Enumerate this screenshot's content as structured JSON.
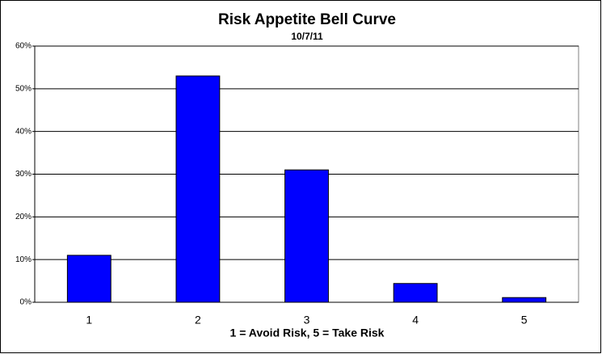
{
  "chart_data": {
    "type": "bar",
    "title": "Risk Appetite Bell Curve",
    "subtitle": "10/7/11",
    "x_label": "1 = Avoid Risk, 5 = Take Risk",
    "categories": [
      "1",
      "2",
      "3",
      "4",
      "5"
    ],
    "values": [
      11,
      53,
      31,
      4.4,
      1.1
    ],
    "color": "#0000ff",
    "ylim": [
      0,
      60
    ],
    "yticks": [
      {
        "value": 0,
        "label": "0%"
      },
      {
        "value": 10,
        "label": "10%"
      },
      {
        "value": 20,
        "label": "20%"
      },
      {
        "value": 30,
        "label": "30%"
      },
      {
        "value": 40,
        "label": "40%"
      },
      {
        "value": 50,
        "label": "50%"
      },
      {
        "value": 60,
        "label": "60%"
      }
    ],
    "grid": true
  }
}
